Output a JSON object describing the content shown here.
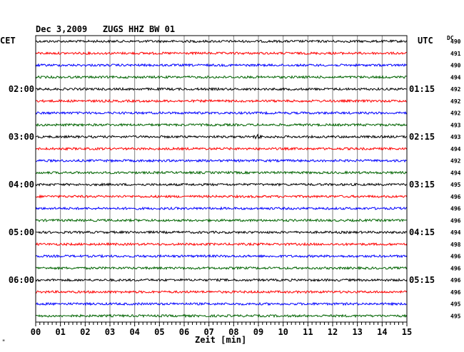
{
  "header": {
    "title": "Dec 3,2009   ZUGS HHZ BW 01",
    "left_tz": "CET",
    "right_tz": "UTC",
    "dc_label": "DC"
  },
  "chart_data": {
    "type": "line",
    "title": "Dec 3,2009   ZUGS HHZ BW 01",
    "xlabel": "Zeit [min]",
    "xlim": [
      0,
      15
    ],
    "x_ticks": [
      "00",
      "01",
      "02",
      "03",
      "04",
      "05",
      "06",
      "07",
      "08",
      "09",
      "10",
      "11",
      "12",
      "13",
      "14",
      "15"
    ],
    "trace_colors": [
      "#000000",
      "#ff0000",
      "#0000ff",
      "#006400"
    ],
    "left_hour_labels": [
      {
        "trace": 4,
        "label": "02:00"
      },
      {
        "trace": 8,
        "label": "03:00"
      },
      {
        "trace": 12,
        "label": "04:00"
      },
      {
        "trace": 16,
        "label": "05:00"
      },
      {
        "trace": 20,
        "label": "06:00"
      }
    ],
    "right_hour_labels": [
      {
        "trace": 4,
        "label": "01:15"
      },
      {
        "trace": 8,
        "label": "02:15"
      },
      {
        "trace": 12,
        "label": "03:15"
      },
      {
        "trace": 16,
        "label": "04:15"
      },
      {
        "trace": 20,
        "label": "05:15"
      }
    ],
    "dc_values": [
      "490",
      "491",
      "490",
      "494",
      "492",
      "492",
      "492",
      "493",
      "493",
      "494",
      "492",
      "494",
      "495",
      "496",
      "496",
      "496",
      "494",
      "498",
      "496",
      "496",
      "496",
      "496",
      "495",
      "495"
    ],
    "grid": true,
    "event": {
      "trace": 8,
      "minute": 9.0
    }
  },
  "footer": {
    "mark": "\""
  }
}
